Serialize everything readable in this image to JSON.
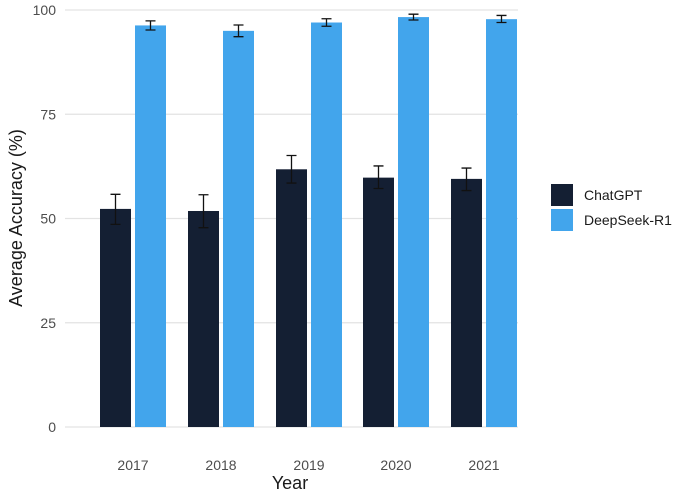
{
  "chart_data": {
    "type": "bar",
    "title": "",
    "xlabel": "Year",
    "ylabel": "Average Accuracy (%)",
    "ylim": [
      0,
      100
    ],
    "yticks": [
      0,
      25,
      50,
      75,
      100
    ],
    "categories": [
      "2017",
      "2018",
      "2019",
      "2020",
      "2021"
    ],
    "series": [
      {
        "name": "ChatGPT",
        "color": "#141f33",
        "values": [
          52.3,
          51.8,
          61.8,
          59.8,
          59.5
        ],
        "err_low": [
          48.6,
          47.8,
          58.5,
          57.2,
          56.7
        ],
        "err_high": [
          55.8,
          55.7,
          65.1,
          62.6,
          62.1
        ]
      },
      {
        "name": "DeepSeek-R1",
        "color": "#42a5ec",
        "values": [
          96.3,
          95.0,
          97.0,
          98.3,
          97.8
        ],
        "err_low": [
          95.2,
          93.6,
          96.1,
          97.6,
          97.0
        ],
        "err_high": [
          97.4,
          96.4,
          97.9,
          99.0,
          98.7
        ]
      }
    ],
    "grid": true,
    "legend_position": "right"
  }
}
